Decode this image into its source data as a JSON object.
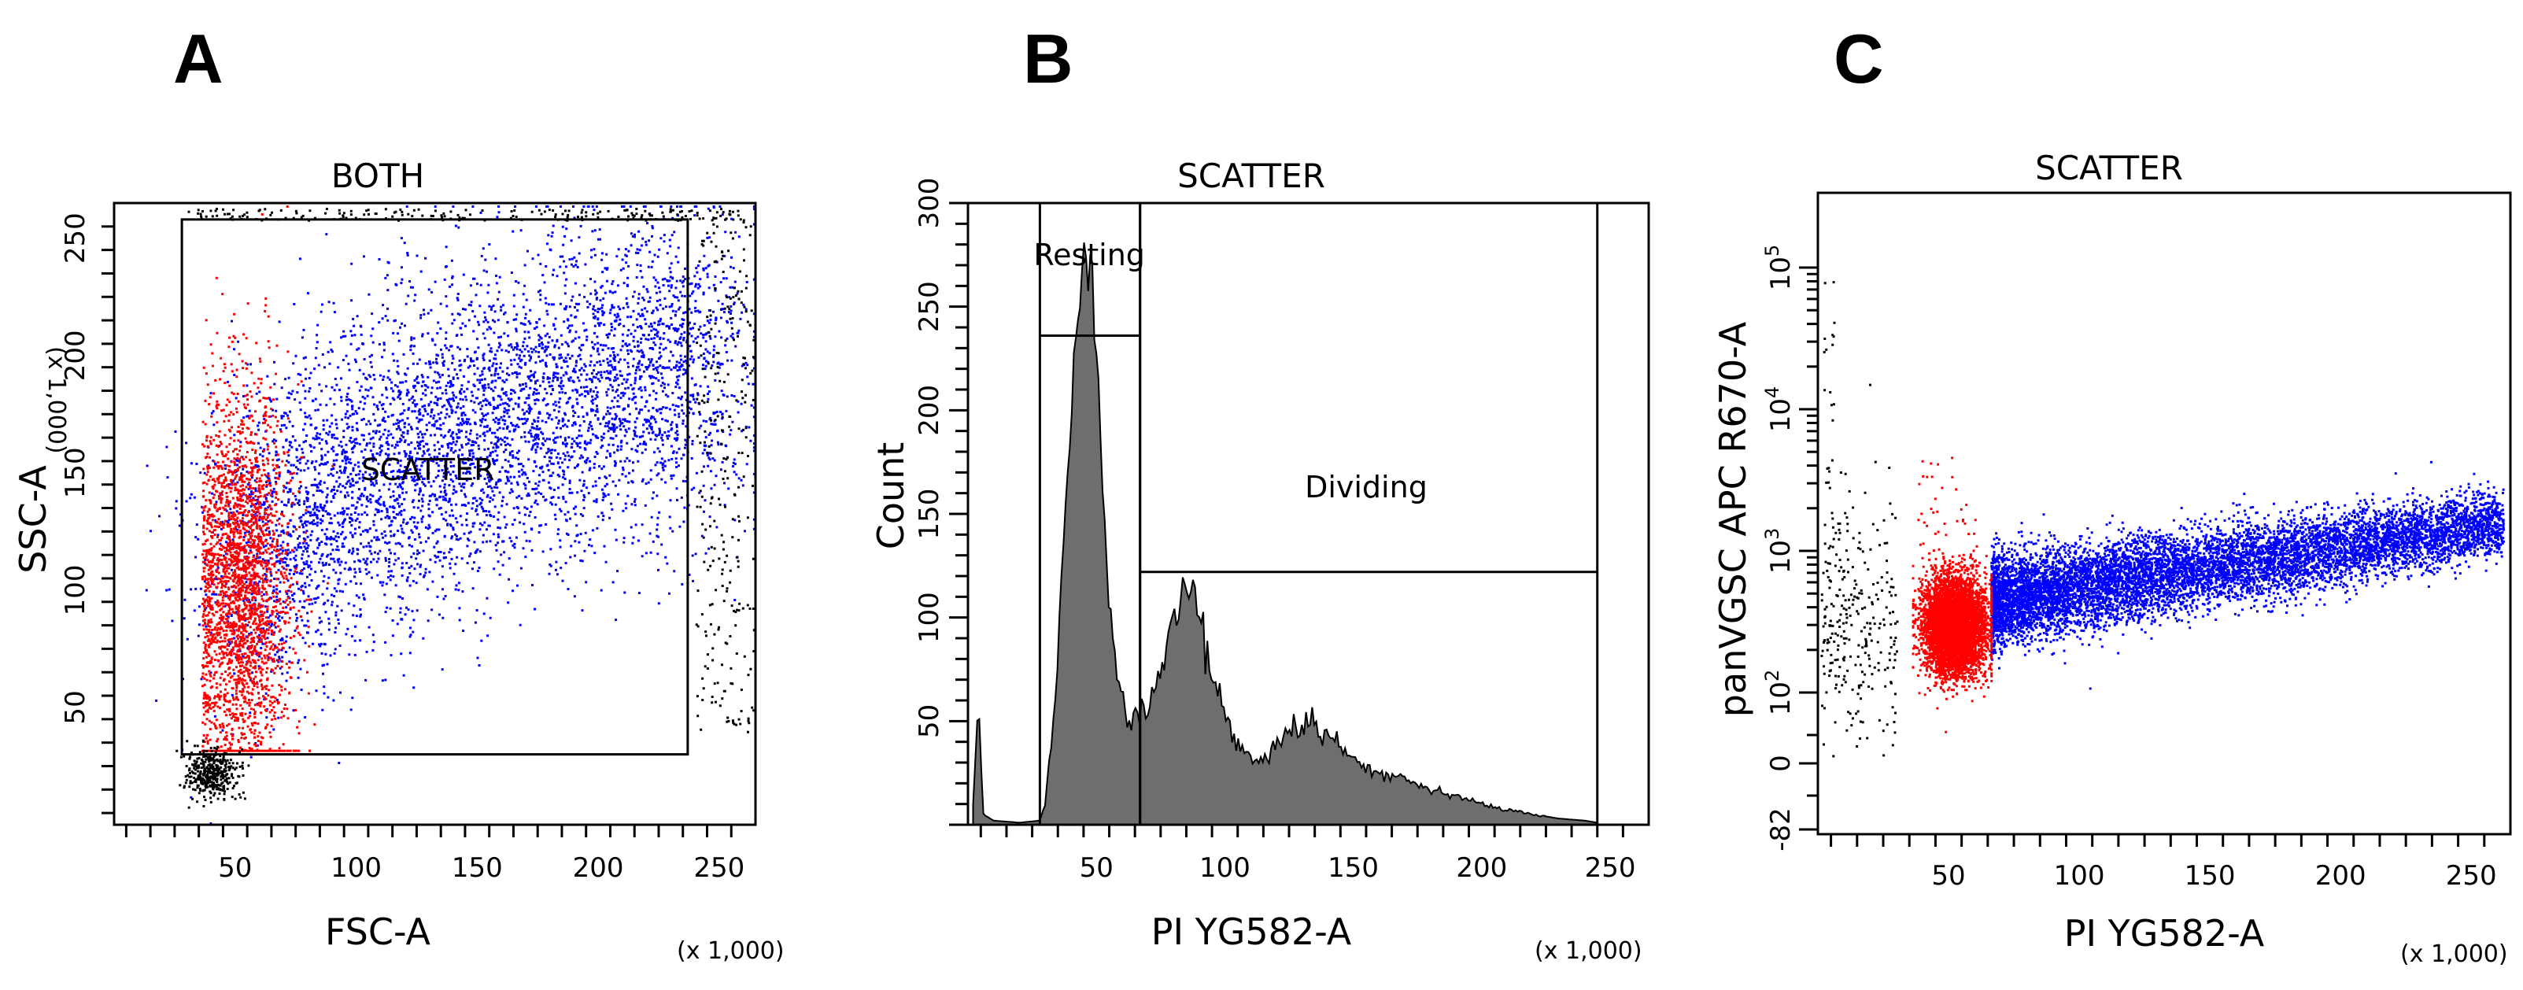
{
  "panels": [
    {
      "letter": "A"
    },
    {
      "letter": "B"
    },
    {
      "letter": "C"
    }
  ],
  "chart_data": [
    {
      "type": "scatter",
      "title": "BOTH",
      "xlabel": "FSC-A",
      "ylabel": "SSC-A",
      "x_multiplier": "(x 1,000)",
      "y_multiplier": "(x 1,000)",
      "xlim": [
        0,
        265
      ],
      "ylim": [
        0,
        265
      ],
      "x_ticks": [
        "50",
        "100",
        "150",
        "200",
        "250"
      ],
      "y_ticks": [
        "50",
        "100",
        "150",
        "200",
        "250"
      ],
      "gate": {
        "label": "SCATTER",
        "x": [
          28,
          237
        ],
        "y": [
          30,
          258
        ]
      },
      "series": [
        {
          "color": "#ff0000",
          "x_center": 52,
          "y_center": 100
        },
        {
          "color": "#0000ff",
          "x_center": 110,
          "y_center": 165
        },
        {
          "color": "#000000",
          "x_center": 40,
          "y_center": 22
        }
      ]
    },
    {
      "type": "area",
      "title": "SCATTER",
      "xlabel": "PI YG582-A",
      "ylabel": "Count",
      "x_multiplier": "(x 1,000)",
      "xlim": [
        0,
        265
      ],
      "ylim": [
        0,
        300
      ],
      "x_ticks": [
        "50",
        "100",
        "150",
        "200",
        "250"
      ],
      "y_ticks": [
        "50",
        "100",
        "150",
        "200",
        "250",
        "300"
      ],
      "gates": [
        {
          "label": "Resting",
          "x": [
            28,
            67
          ],
          "y": 236
        },
        {
          "label": "Dividing",
          "x": [
            67,
            245
          ],
          "y": 122
        }
      ],
      "histogram": {
        "x": [
          2,
          4,
          6,
          10,
          20,
          28,
          30,
          34,
          38,
          42,
          45,
          48,
          51,
          54,
          58,
          62,
          66,
          70,
          74,
          78,
          82,
          86,
          89,
          92,
          96,
          100,
          104,
          110,
          116,
          122,
          128,
          134,
          140,
          146,
          152,
          158,
          164,
          170,
          176,
          182,
          190,
          200,
          210,
          220,
          230,
          240,
          245
        ],
        "y": [
          10,
          55,
          5,
          2,
          1,
          2,
          10,
          60,
          150,
          240,
          275,
          270,
          200,
          120,
          70,
          50,
          52,
          58,
          70,
          92,
          108,
          118,
          110,
          90,
          70,
          52,
          40,
          32,
          32,
          40,
          48,
          50,
          42,
          36,
          30,
          26,
          24,
          22,
          20,
          17,
          14,
          10,
          7,
          5,
          3,
          2,
          1
        ]
      }
    },
    {
      "type": "scatter",
      "title": "SCATTER",
      "xlabel": "PI YG582-A",
      "ylabel": "panVGSC APC R670-A",
      "x_multiplier": "(x 1,000)",
      "xlim": [
        0,
        265
      ],
      "y_scale": "log",
      "x_ticks": [
        "50",
        "100",
        "150",
        "200",
        "250"
      ],
      "y_ticks": [
        {
          "base": "10",
          "exp": "5",
          "value": 100000
        },
        {
          "base": "10",
          "exp": "4",
          "value": 10000
        },
        {
          "base": "10",
          "exp": "3",
          "value": 1000
        },
        {
          "base": "10",
          "exp": "2",
          "value": 100
        },
        {
          "base": "0",
          "exp": "",
          "value": 0
        },
        {
          "base": "-82",
          "exp": "",
          "value": -82
        }
      ],
      "series": [
        {
          "color": "#ff0000",
          "x_range": [
            36,
            66
          ],
          "y_center": 300
        },
        {
          "color": "#0000ff",
          "x_range": [
            66,
            262
          ],
          "y_start": 450,
          "y_end": 1600
        },
        {
          "color": "#000000",
          "x_range": [
            0,
            30
          ],
          "y_center": 300
        }
      ]
    }
  ]
}
